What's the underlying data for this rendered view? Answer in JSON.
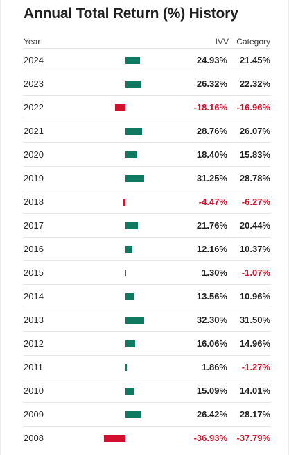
{
  "title": "Annual Total Return (%) History",
  "headers": {
    "year": "Year",
    "ivv": "IVV",
    "category": "Category"
  },
  "colors": {
    "positive_bar": "#0f7a5f",
    "negative_bar": "#d0102c",
    "negative_text": "#d0102c"
  },
  "rows": [
    {
      "year": "2024",
      "ivv": "24.93%",
      "category": "21.45%",
      "ivv_value": 24.93
    },
    {
      "year": "2023",
      "ivv": "26.32%",
      "category": "22.32%",
      "ivv_value": 26.32
    },
    {
      "year": "2022",
      "ivv": "-18.16%",
      "category": "-16.96%",
      "ivv_value": -18.16
    },
    {
      "year": "2021",
      "ivv": "28.76%",
      "category": "26.07%",
      "ivv_value": 28.76
    },
    {
      "year": "2020",
      "ivv": "18.40%",
      "category": "15.83%",
      "ivv_value": 18.4
    },
    {
      "year": "2019",
      "ivv": "31.25%",
      "category": "28.78%",
      "ivv_value": 31.25
    },
    {
      "year": "2018",
      "ivv": "-4.47%",
      "category": "-6.27%",
      "ivv_value": -4.47
    },
    {
      "year": "2017",
      "ivv": "21.76%",
      "category": "20.44%",
      "ivv_value": 21.76
    },
    {
      "year": "2016",
      "ivv": "12.16%",
      "category": "10.37%",
      "ivv_value": 12.16
    },
    {
      "year": "2015",
      "ivv": "1.30%",
      "category": "-1.07%",
      "ivv_value": 1.3
    },
    {
      "year": "2014",
      "ivv": "13.56%",
      "category": "10.96%",
      "ivv_value": 13.56
    },
    {
      "year": "2013",
      "ivv": "32.30%",
      "category": "31.50%",
      "ivv_value": 32.3
    },
    {
      "year": "2012",
      "ivv": "16.06%",
      "category": "14.96%",
      "ivv_value": 16.06
    },
    {
      "year": "2011",
      "ivv": "1.86%",
      "category": "-1.27%",
      "ivv_value": 1.86
    },
    {
      "year": "2010",
      "ivv": "15.09%",
      "category": "14.01%",
      "ivv_value": 15.09
    },
    {
      "year": "2009",
      "ivv": "26.42%",
      "category": "28.17%",
      "ivv_value": 26.42
    },
    {
      "year": "2008",
      "ivv": "-36.93%",
      "category": "-37.79%",
      "ivv_value": -36.93
    }
  ]
}
